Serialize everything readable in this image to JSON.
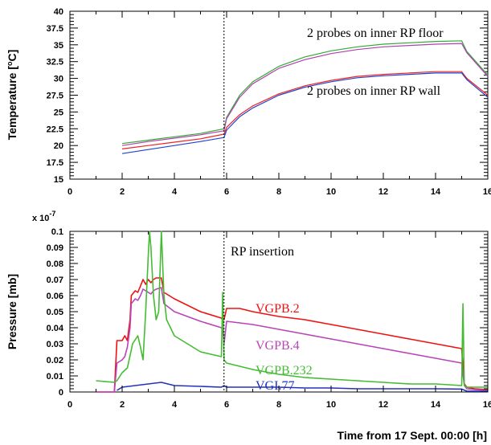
{
  "chart_data": [
    {
      "type": "line",
      "ylabel": "Temperature [°C]",
      "ylabel_main": "Temperature [",
      "ylabel_sup": "o",
      "ylabel_tail": "C]",
      "xlim": [
        0,
        16
      ],
      "ylim": [
        15,
        40
      ],
      "x_ticks": [
        0,
        2,
        4,
        6,
        8,
        10,
        12,
        14,
        16
      ],
      "x_tick_labels": [
        "0",
        "2",
        "4",
        "6",
        "8",
        "10",
        "12",
        "14",
        "16"
      ],
      "y_ticks": [
        15,
        17.5,
        20,
        22.5,
        25,
        27.5,
        30,
        32.5,
        35,
        37.5,
        40
      ],
      "y_tick_labels": [
        "15",
        "17.5",
        "20",
        "22.5",
        "25",
        "27.5",
        "30",
        "32.5",
        "35",
        "37.5",
        "40"
      ],
      "vline_x": 5.9,
      "annotations": [
        "2 probes on inner RP floor",
        "2 probes on inner RP wall"
      ],
      "series": [
        {
          "color": "#33aa33",
          "x": [
            2,
            3,
            4,
            5,
            5.9,
            6.0,
            6.5,
            7,
            8,
            9,
            10,
            11,
            12,
            13,
            14,
            15,
            15.2,
            16
          ],
          "y": [
            20.3,
            20.8,
            21.3,
            21.8,
            22.5,
            24.2,
            27.5,
            29.5,
            31.8,
            33.2,
            34.1,
            34.7,
            35.1,
            35.3,
            35.5,
            35.6,
            34.0,
            30.5
          ]
        },
        {
          "color": "#b040b0",
          "x": [
            2,
            3,
            4,
            5,
            5.9,
            6.0,
            6.5,
            7,
            8,
            9,
            10,
            11,
            12,
            13,
            14,
            15,
            15.2,
            16
          ],
          "y": [
            20.0,
            20.6,
            21.1,
            21.6,
            22.2,
            24.0,
            27.2,
            29.2,
            31.5,
            32.8,
            33.7,
            34.3,
            34.7,
            34.9,
            35.1,
            35.2,
            33.8,
            30.3
          ]
        },
        {
          "color": "#ee2222",
          "x": [
            2,
            3,
            4,
            5,
            5.9,
            6.0,
            6.5,
            7,
            8,
            9,
            10,
            11,
            12,
            13,
            14,
            15,
            15.2,
            16
          ],
          "y": [
            19.5,
            20.0,
            20.5,
            21.0,
            21.7,
            22.7,
            24.6,
            25.9,
            27.7,
            28.9,
            29.7,
            30.3,
            30.6,
            30.8,
            31.0,
            31.0,
            30.0,
            27.5
          ]
        },
        {
          "color": "#2244cc",
          "x": [
            2,
            3,
            4,
            5,
            5.9,
            6.0,
            6.5,
            7,
            8,
            9,
            10,
            11,
            12,
            13,
            14,
            15,
            15.2,
            16
          ],
          "y": [
            18.8,
            19.4,
            20.0,
            20.6,
            21.2,
            22.3,
            24.3,
            25.6,
            27.5,
            28.7,
            29.5,
            30.1,
            30.4,
            30.6,
            30.8,
            30.8,
            29.8,
            27.2
          ]
        }
      ]
    },
    {
      "type": "line",
      "xlabel": "Time from 17 Sept. 00:00 [h]",
      "ylabel": "Pressure [mb]",
      "y_scale_main": "x 10",
      "y_scale_exp": "-7",
      "xlim": [
        0,
        16
      ],
      "ylim": [
        0,
        0.1
      ],
      "x_ticks": [
        0,
        2,
        4,
        6,
        8,
        10,
        12,
        14,
        16
      ],
      "x_tick_labels": [
        "0",
        "2",
        "4",
        "6",
        "8",
        "10",
        "12",
        "14",
        "16"
      ],
      "y_ticks": [
        0,
        0.01,
        0.02,
        0.03,
        0.04,
        0.05,
        0.06,
        0.07,
        0.08,
        0.09,
        0.1
      ],
      "y_tick_labels": [
        "0",
        "0.01",
        "0.02",
        "0.03",
        "0.04",
        "0.05",
        "0.06",
        "0.07",
        "0.08",
        "0.09",
        "0.1"
      ],
      "vline_x": 5.9,
      "annotations": [
        "RP insertion"
      ],
      "series": [
        {
          "name": "VGPB.2",
          "color": "#ee1111",
          "x": [
            1.0,
            1.7,
            1.8,
            2.0,
            2.1,
            2.2,
            2.3,
            2.35,
            2.5,
            2.6,
            2.7,
            2.8,
            2.9,
            3.0,
            3.1,
            3.2,
            3.3,
            3.5,
            3.6,
            4,
            5,
            5.8,
            5.85,
            5.9,
            6.0,
            6.5,
            7,
            8,
            9,
            10,
            11,
            12,
            13,
            14,
            15.0,
            15.1,
            15.2,
            15.5,
            16
          ],
          "y": [
            0.0,
            0.0,
            0.032,
            0.032,
            0.035,
            0.032,
            0.045,
            0.06,
            0.063,
            0.062,
            0.066,
            0.07,
            0.067,
            0.07,
            0.068,
            0.07,
            0.071,
            0.071,
            0.062,
            0.058,
            0.05,
            0.046,
            0.045,
            0.045,
            0.052,
            0.052,
            0.05,
            0.047,
            0.045,
            0.042,
            0.039,
            0.036,
            0.033,
            0.03,
            0.027,
            0.005,
            0.003,
            0.002,
            0.0015
          ]
        },
        {
          "name": "VGPB.4",
          "color": "#b844b8",
          "x": [
            1.0,
            1.7,
            1.8,
            2.0,
            2.1,
            2.2,
            2.3,
            2.35,
            2.5,
            2.6,
            2.7,
            2.8,
            2.9,
            3.0,
            3.1,
            3.2,
            3.3,
            3.5,
            3.6,
            4,
            5,
            5.8,
            5.85,
            5.9,
            6.0,
            6.5,
            7,
            8,
            9,
            10,
            11,
            12,
            13,
            14,
            15.0,
            15.1,
            15.2,
            15.5,
            16
          ],
          "y": [
            0.0,
            0.0,
            0.018,
            0.02,
            0.022,
            0.028,
            0.04,
            0.055,
            0.058,
            0.057,
            0.06,
            0.064,
            0.063,
            0.062,
            0.061,
            0.063,
            0.064,
            0.065,
            0.055,
            0.05,
            0.044,
            0.04,
            0.039,
            0.03,
            0.044,
            0.043,
            0.042,
            0.039,
            0.036,
            0.033,
            0.03,
            0.027,
            0.024,
            0.021,
            0.018,
            0.004,
            0.002,
            0.0015,
            0.001
          ]
        },
        {
          "name": "VGPB.232",
          "color": "#44bb33",
          "x": [
            1.0,
            1.7,
            1.8,
            2.0,
            2.2,
            2.4,
            2.6,
            2.7,
            2.8,
            2.9,
            3.0,
            3.05,
            3.1,
            3.2,
            3.3,
            3.4,
            3.5,
            3.6,
            3.7,
            4,
            5,
            5.8,
            5.85,
            5.9,
            6.0,
            6.5,
            7,
            8,
            9,
            10,
            11,
            12,
            13,
            14,
            15.0,
            15.05,
            15.1,
            15.2,
            16
          ],
          "y": [
            0.007,
            0.006,
            0.007,
            0.012,
            0.015,
            0.03,
            0.035,
            0.028,
            0.02,
            0.05,
            0.085,
            0.1,
            0.09,
            0.06,
            0.045,
            0.05,
            0.1,
            0.06,
            0.045,
            0.035,
            0.025,
            0.022,
            0.062,
            0.02,
            0.018,
            0.016,
            0.014,
            0.011,
            0.009,
            0.008,
            0.007,
            0.006,
            0.005,
            0.005,
            0.004,
            0.055,
            0.004,
            0.003,
            0.003
          ]
        },
        {
          "name": "VGI.77",
          "color": "#2233bb",
          "x": [
            1.8,
            2.0,
            2.5,
            3.0,
            3.5,
            4,
            5,
            5.8,
            5.9,
            6.0,
            7,
            8,
            9,
            10,
            11,
            12,
            13,
            14,
            15,
            15.2,
            16
          ],
          "y": [
            0.001,
            0.003,
            0.004,
            0.005,
            0.006,
            0.004,
            0.0035,
            0.003,
            0.004,
            0.003,
            0.003,
            0.003,
            0.0025,
            0.0025,
            0.002,
            0.002,
            0.002,
            0.002,
            0.0018,
            0.0005,
            0.0005
          ]
        }
      ]
    }
  ]
}
